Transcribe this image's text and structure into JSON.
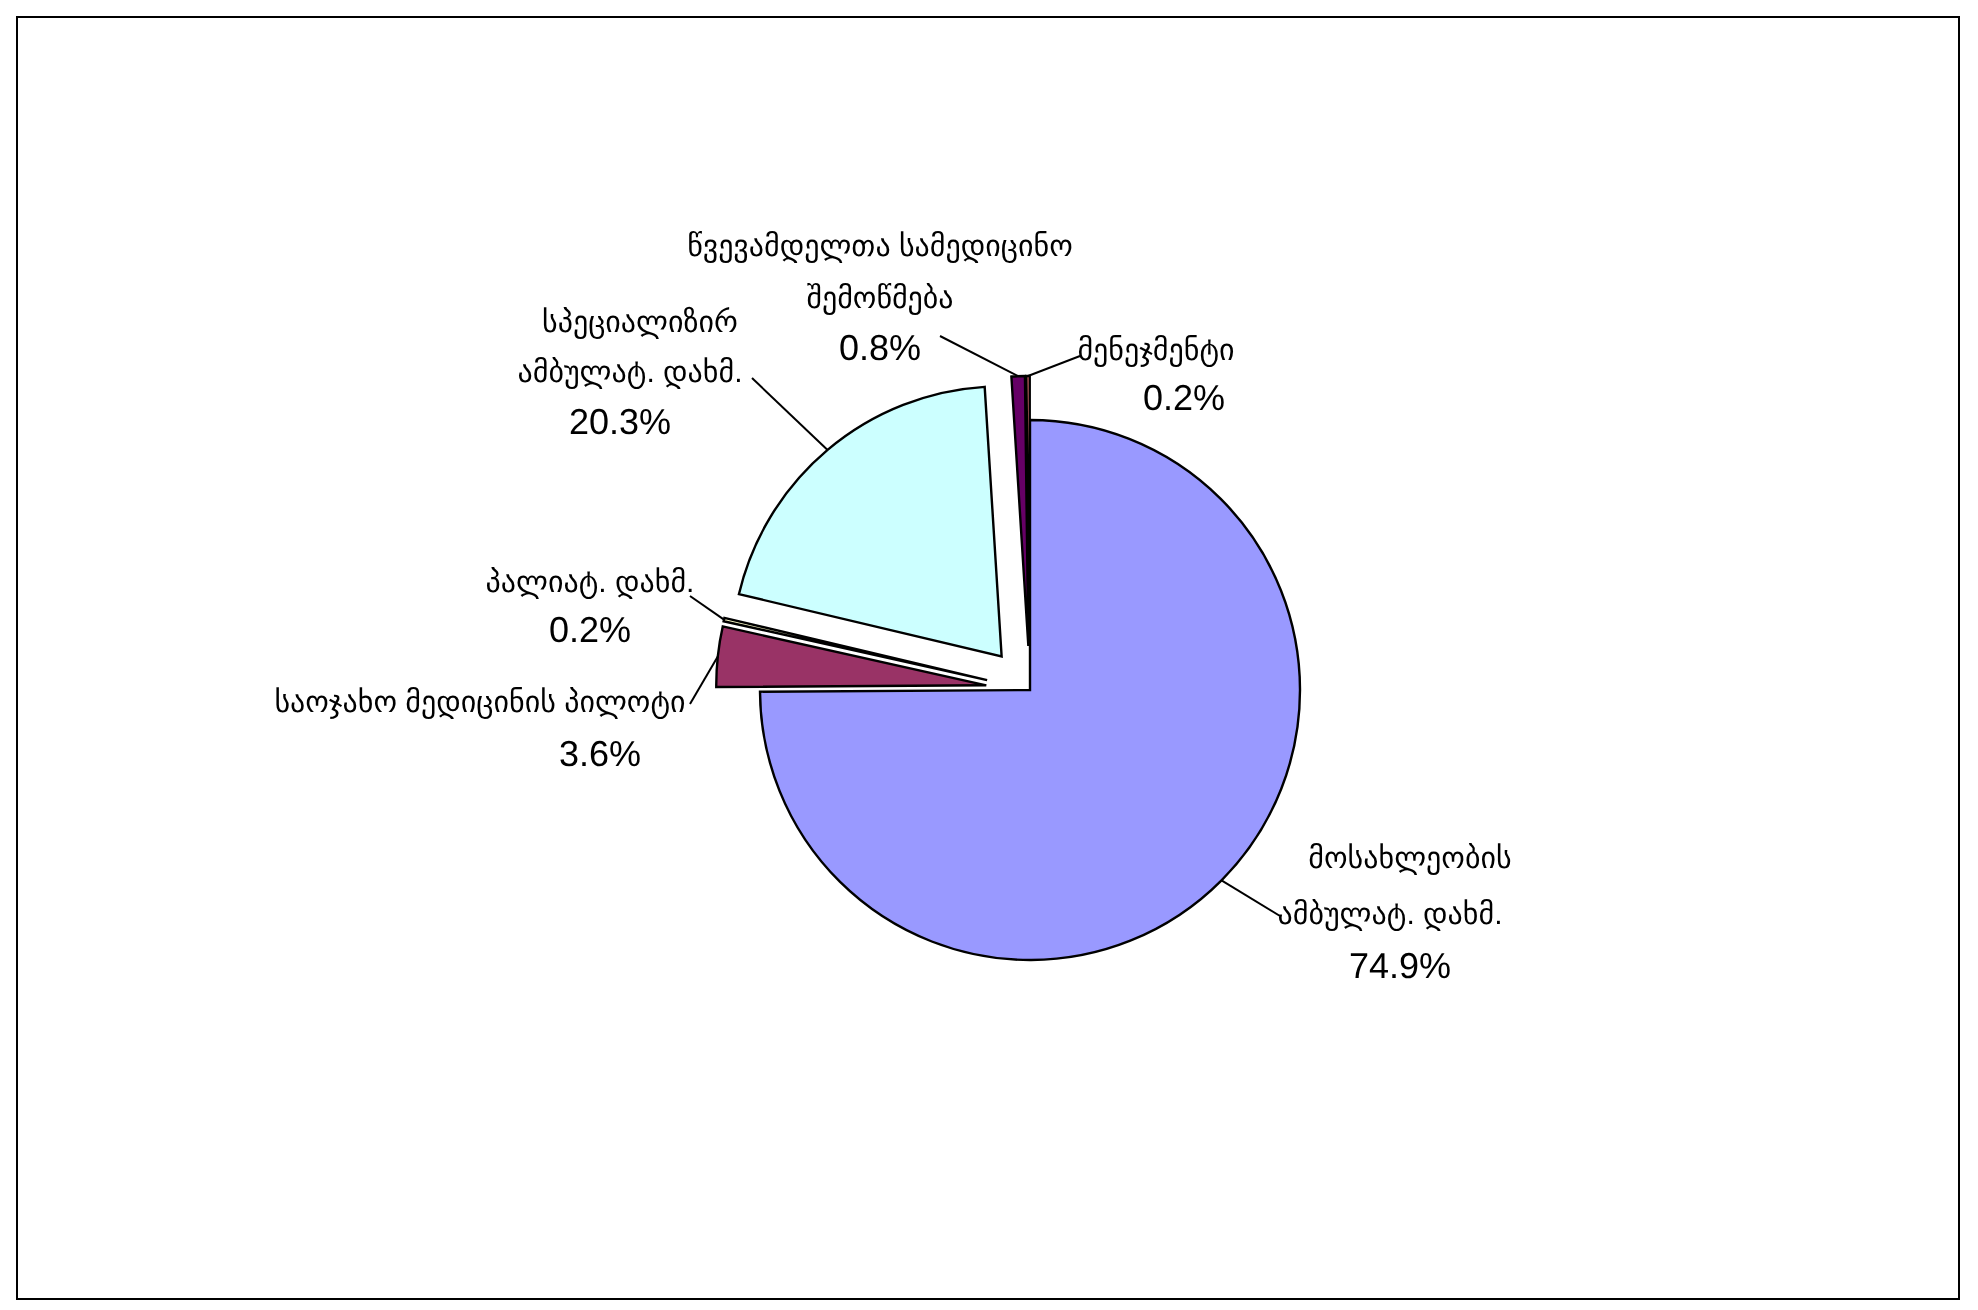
{
  "chart_data": {
    "type": "pie",
    "categories": [
      "მოსახლეობის ამბულატ. დახმ.",
      "საოჯახო მედიცინის პილოტი",
      "პალიატ. დახმ.",
      "სპეციალიზირ ამბულატ. დახმ.",
      "წვევამდელთა სამედიცინო შემოწმება",
      "მენეჯმენტი"
    ],
    "values": [
      74.9,
      3.6,
      0.2,
      20.3,
      0.8,
      0.2
    ],
    "colors": [
      "#9999ff",
      "#993366",
      "#ffffcc",
      "#ccffff",
      "#660066",
      "#ff8080"
    ],
    "value_labels": [
      "74.9%",
      "3.6%",
      "0.2%",
      "20.3%",
      "0.8%",
      "0.2%"
    ]
  }
}
